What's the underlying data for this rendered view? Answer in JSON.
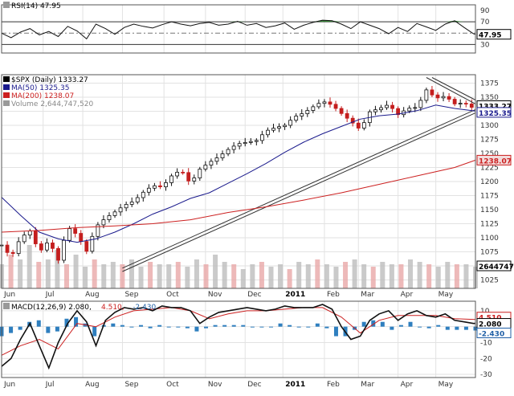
{
  "chart_data": [
    {
      "type": "line",
      "panel": "rsi",
      "legend_label": "RSI(14) 47.95",
      "value_tag": "47.95",
      "y_ticks": [
        90,
        70,
        50,
        30
      ],
      "ylim": [
        15,
        100
      ],
      "reference_lines": [
        70,
        50,
        30
      ],
      "grid": true,
      "series": [
        {
          "name": "RSI(14)",
          "x": [
            0,
            5,
            10,
            15,
            20,
            25,
            30,
            35,
            40,
            45,
            50,
            55,
            60,
            65,
            70,
            75,
            80,
            85,
            90,
            95,
            100,
            105,
            110,
            115,
            120,
            125,
            130,
            135,
            140,
            145,
            150,
            155,
            160,
            165,
            170,
            175,
            180,
            185,
            190,
            195,
            200,
            205,
            210,
            215,
            220,
            225,
            230,
            235,
            240,
            245,
            250,
            251
          ],
          "values": [
            50,
            42,
            52,
            58,
            47,
            53,
            44,
            62,
            54,
            40,
            66,
            58,
            48,
            60,
            66,
            62,
            59,
            65,
            70,
            66,
            63,
            67,
            69,
            64,
            66,
            71,
            64,
            67,
            60,
            63,
            68,
            57,
            64,
            69,
            73,
            72,
            66,
            58,
            70,
            64,
            58,
            49,
            60,
            53,
            67,
            61,
            55,
            66,
            72,
            60,
            49,
            47.95
          ]
        }
      ]
    },
    {
      "type": "line",
      "panel": "price",
      "legend": [
        {
          "label": "$SPX (Daily) 1333.27",
          "color": "#000000"
        },
        {
          "label": "MA(50) 1325.35",
          "color": "#1a1a8c"
        },
        {
          "label": "MA(200) 1238.07",
          "color": "#cc2020"
        },
        {
          "label": "Volume 2,644,747,520",
          "color": "#888888"
        }
      ],
      "value_tags": [
        {
          "label": "1333.27",
          "value": 1335,
          "fill": "#ffffff",
          "color": "#000000"
        },
        {
          "label": "1325.35",
          "value": 1323,
          "fill": "#ffffff",
          "color": "#1a1a8c"
        },
        {
          "label": "1238.07",
          "value": 1238,
          "fill": "#f2dcdc",
          "color": "#cc2020"
        }
      ],
      "volume_tag": "2644747",
      "y_ticks": [
        1375,
        1350,
        1325,
        1300,
        1275,
        1250,
        1225,
        1200,
        1175,
        1150,
        1125,
        1100,
        1075,
        1050,
        1025
      ],
      "ylim": [
        1010,
        1390
      ],
      "x_labels": [
        "Jun",
        "Jul",
        "Aug",
        "Sep",
        "Oct",
        "Nov",
        "Dec",
        "2011",
        "Feb",
        "Mar",
        "Apr",
        "May"
      ],
      "x_label_positions": [
        0,
        22,
        43,
        64,
        86,
        108,
        129,
        149,
        171,
        189,
        210,
        230
      ],
      "grid": true,
      "series": [
        {
          "name": "$SPX (Daily)",
          "x": [
            0,
            5,
            10,
            15,
            20,
            25,
            30,
            35,
            40,
            45,
            50,
            55,
            60,
            65,
            70,
            75,
            80,
            85,
            90,
            95,
            100,
            105,
            110,
            115,
            120,
            125,
            130,
            135,
            140,
            145,
            150,
            155,
            160,
            165,
            170,
            175,
            180,
            185,
            190,
            195,
            200,
            205,
            210,
            215,
            220,
            225,
            230,
            235,
            240,
            245,
            250,
            251
          ],
          "values": [
            1087,
            1065,
            1100,
            1112,
            1074,
            1095,
            1060,
            1119,
            1105,
            1076,
            1120,
            1135,
            1146,
            1158,
            1165,
            1181,
            1193,
            1190,
            1210,
            1221,
            1196,
            1222,
            1234,
            1244,
            1257,
            1267,
            1270,
            1273,
            1290,
            1296,
            1300,
            1315,
            1322,
            1333,
            1343,
            1336,
            1321,
            1307,
            1292,
            1324,
            1330,
            1337,
            1319,
            1330,
            1332,
            1363,
            1348,
            1352,
            1338,
            1340,
            1330,
            1333.27
          ]
        },
        {
          "name": "MA(50)",
          "x": [
            0,
            10,
            20,
            30,
            40,
            50,
            60,
            70,
            80,
            90,
            100,
            110,
            120,
            130,
            140,
            150,
            160,
            170,
            180,
            190,
            200,
            210,
            220,
            230,
            240,
            251
          ],
          "values": [
            1172,
            1140,
            1110,
            1098,
            1092,
            1098,
            1110,
            1125,
            1142,
            1155,
            1170,
            1180,
            1197,
            1214,
            1232,
            1252,
            1270,
            1285,
            1298,
            1311,
            1317,
            1320,
            1326,
            1336,
            1330,
            1325.35
          ]
        },
        {
          "name": "MA(200)",
          "x": [
            0,
            20,
            40,
            60,
            80,
            100,
            120,
            140,
            160,
            180,
            200,
            220,
            240,
            251
          ],
          "values": [
            1110,
            1113,
            1118,
            1121,
            1125,
            1132,
            1145,
            1155,
            1167,
            1180,
            1195,
            1210,
            1225,
            1238.07
          ]
        }
      ],
      "volume_bars": [
        0.5,
        0.7,
        0.6,
        0.9,
        0.55,
        0.6,
        0.8,
        0.5,
        0.7,
        0.45,
        0.6,
        0.5,
        0.55,
        0.5,
        0.6,
        0.45,
        0.55,
        0.5,
        0.5,
        0.55,
        0.45,
        0.6,
        0.5,
        0.7,
        0.55,
        0.5,
        0.4,
        0.5,
        0.55,
        0.45,
        0.5,
        0.4,
        0.55,
        0.5,
        0.6,
        0.5,
        0.45,
        0.55,
        0.6,
        0.5,
        0.45,
        0.55,
        0.5,
        0.5,
        0.6,
        0.55,
        0.5,
        0.45,
        0.55,
        0.5,
        0.5,
        0.45
      ]
    },
    {
      "type": "line",
      "panel": "macd",
      "legend_label": "MACD(12,26,9) 2.080, 4.510, -2.430",
      "legend_parts": [
        {
          "text": "MACD(12,26,9) 2.080,",
          "color": "#000000"
        },
        {
          "text": " 4.510,",
          "color": "#cc2020"
        },
        {
          "text": " -2.430",
          "color": "#1f5fa6"
        }
      ],
      "value_tags": [
        {
          "label": "4.510",
          "value": 4.51,
          "color": "#cc2020"
        },
        {
          "label": "2.080",
          "value": 2.08,
          "color": "#000000"
        },
        {
          "label": "-2.430",
          "value": -2.43,
          "color": "#1f5fa6"
        }
      ],
      "y_ticks": [
        10,
        0,
        -10,
        -20,
        -30
      ],
      "ylim": [
        -32,
        16
      ],
      "grid": true,
      "series": [
        {
          "name": "MACD",
          "x": [
            0,
            5,
            10,
            15,
            20,
            25,
            30,
            35,
            40,
            45,
            50,
            55,
            60,
            65,
            70,
            75,
            80,
            85,
            90,
            95,
            100,
            105,
            110,
            115,
            120,
            125,
            130,
            135,
            140,
            145,
            150,
            155,
            160,
            165,
            170,
            175,
            180,
            185,
            190,
            195,
            200,
            205,
            210,
            215,
            220,
            225,
            230,
            235,
            240,
            245,
            250,
            251
          ],
          "values": [
            -25,
            -20,
            -8,
            2,
            -12,
            -26,
            -10,
            2,
            10,
            3,
            -12,
            4,
            9,
            12,
            11,
            12,
            10,
            13,
            12,
            12,
            10,
            2,
            6,
            9,
            10,
            11,
            12,
            11,
            10,
            11,
            13,
            12,
            12,
            12,
            14,
            11,
            0,
            -8,
            -6,
            4,
            8,
            10,
            4,
            8,
            10,
            7,
            6,
            8,
            4,
            3,
            2,
            2.08
          ]
        },
        {
          "name": "Signal",
          "x": [
            0,
            10,
            20,
            30,
            40,
            50,
            60,
            70,
            80,
            90,
            100,
            110,
            120,
            130,
            140,
            150,
            160,
            170,
            180,
            190,
            200,
            210,
            220,
            230,
            240,
            251
          ],
          "values": [
            -18,
            -12,
            -8,
            -14,
            2,
            0,
            6,
            10,
            11,
            12,
            10,
            5,
            8,
            10,
            10,
            11,
            12,
            12,
            6,
            -4,
            4,
            7,
            7,
            7,
            5,
            4.51
          ]
        }
      ],
      "histogram": [
        -6,
        -4,
        -2,
        3,
        4,
        -4,
        -3,
        5,
        6,
        2,
        -6,
        1,
        2,
        1,
        0,
        1,
        -1,
        1,
        0,
        0,
        -1,
        -3,
        -1,
        1,
        1,
        1,
        1,
        0,
        0,
        0,
        2,
        1,
        0,
        0,
        2,
        -1,
        -6,
        -6,
        -2,
        3,
        4,
        3,
        -2,
        1,
        3,
        0,
        -1,
        1,
        -2,
        -2,
        -2,
        -2.43
      ]
    }
  ]
}
